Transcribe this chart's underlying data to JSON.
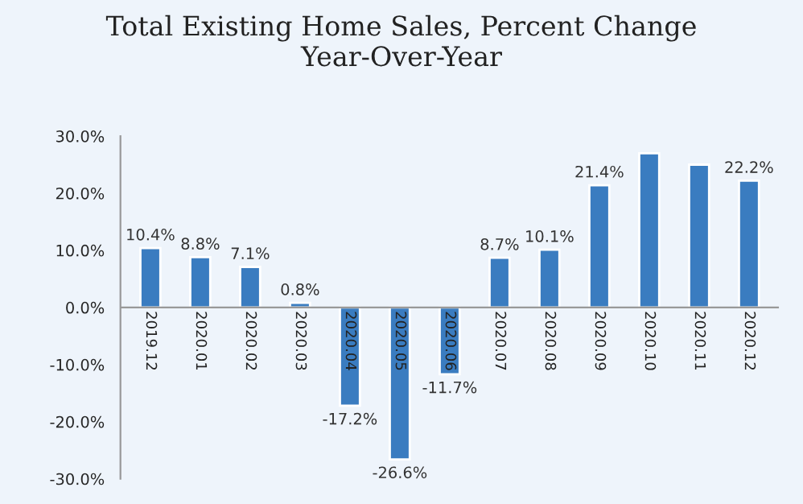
{
  "chart_data": {
    "type": "bar",
    "title": "Total Existing Home Sales, Percent Change\nYear-Over-Year",
    "categories": [
      "2019.12",
      "2020.01",
      "2020.02",
      "2020.03",
      "2020.04",
      "2020.05",
      "2020.06",
      "2020.07",
      "2020.08",
      "2020.09",
      "2020.10",
      "2020.11",
      "2020.12"
    ],
    "values": [
      10.4,
      8.8,
      7.1,
      0.8,
      -17.2,
      -26.6,
      -11.7,
      8.7,
      10.1,
      21.4,
      27,
      25,
      22.2
    ],
    "value_labels": [
      "10.4%",
      "8.8%",
      "7.1%",
      "0.8%",
      "-17.2%",
      "-26.6%",
      "-11.7%",
      "8.7%",
      "10.1%",
      "21.4%",
      null,
      null,
      "22.2%"
    ],
    "color": "#3a7cc0",
    "ylim": [
      -30,
      30
    ],
    "yticks": [
      {
        "value": -30,
        "label": "-30.0%"
      },
      {
        "value": -20,
        "label": "-20.0%"
      },
      {
        "value": -10,
        "label": "-10.0%"
      },
      {
        "value": 0,
        "label": "0.0%"
      },
      {
        "value": 10,
        "label": "10.0%"
      },
      {
        "value": 20,
        "label": "20.0%"
      },
      {
        "value": 30,
        "label": "30.0%"
      }
    ],
    "grid": false
  }
}
